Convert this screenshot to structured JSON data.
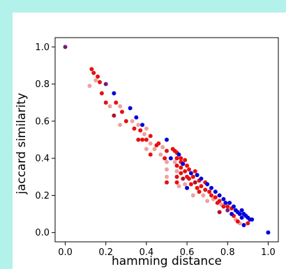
{
  "chart_data": {
    "type": "scatter",
    "title": "",
    "xlabel": "hamming distance",
    "ylabel": "jaccard similarity",
    "xlim": [
      -0.05,
      1.05
    ],
    "ylim": [
      -0.05,
      1.05
    ],
    "xticks": [
      "0.0",
      "0.2",
      "0.4",
      "0.6",
      "0.8",
      "1.0"
    ],
    "yticks": [
      "0.0",
      "0.2",
      "0.4",
      "0.6",
      "0.8",
      "1.0"
    ],
    "grid": false,
    "colors": {
      "blue": "#0000dd",
      "red": "#e81010",
      "pink": "#f0a0a0",
      "darkred": "#b01030",
      "purple": "#7a1a7a"
    },
    "points": [
      {
        "x": 0.0,
        "y": 1.0,
        "c": "purple"
      },
      {
        "x": 1.0,
        "y": 0.0,
        "c": "blue"
      },
      {
        "x": 0.13,
        "y": 0.88,
        "c": "red"
      },
      {
        "x": 0.14,
        "y": 0.86,
        "c": "red"
      },
      {
        "x": 0.15,
        "y": 0.82,
        "c": "pink"
      },
      {
        "x": 0.16,
        "y": 0.84,
        "c": "red"
      },
      {
        "x": 0.17,
        "y": 0.81,
        "c": "red"
      },
      {
        "x": 0.12,
        "y": 0.79,
        "c": "pink"
      },
      {
        "x": 0.2,
        "y": 0.8,
        "c": "purple"
      },
      {
        "x": 0.18,
        "y": 0.75,
        "c": "red"
      },
      {
        "x": 0.2,
        "y": 0.7,
        "c": "red"
      },
      {
        "x": 0.22,
        "y": 0.68,
        "c": "pink"
      },
      {
        "x": 0.24,
        "y": 0.75,
        "c": "blue"
      },
      {
        "x": 0.25,
        "y": 0.7,
        "c": "red"
      },
      {
        "x": 0.27,
        "y": 0.68,
        "c": "pink"
      },
      {
        "x": 0.24,
        "y": 0.63,
        "c": "darkred"
      },
      {
        "x": 0.28,
        "y": 0.65,
        "c": "red"
      },
      {
        "x": 0.3,
        "y": 0.6,
        "c": "red"
      },
      {
        "x": 0.32,
        "y": 0.67,
        "c": "blue"
      },
      {
        "x": 0.27,
        "y": 0.58,
        "c": "pink"
      },
      {
        "x": 0.33,
        "y": 0.6,
        "c": "pink"
      },
      {
        "x": 0.35,
        "y": 0.62,
        "c": "blue"
      },
      {
        "x": 0.34,
        "y": 0.56,
        "c": "red"
      },
      {
        "x": 0.36,
        "y": 0.58,
        "c": "pink"
      },
      {
        "x": 0.37,
        "y": 0.55,
        "c": "red"
      },
      {
        "x": 0.38,
        "y": 0.58,
        "c": "blue"
      },
      {
        "x": 0.39,
        "y": 0.53,
        "c": "pink"
      },
      {
        "x": 0.4,
        "y": 0.56,
        "c": "pink"
      },
      {
        "x": 0.36,
        "y": 0.5,
        "c": "red"
      },
      {
        "x": 0.38,
        "y": 0.5,
        "c": "red"
      },
      {
        "x": 0.4,
        "y": 0.5,
        "c": "red"
      },
      {
        "x": 0.42,
        "y": 0.48,
        "c": "pink"
      },
      {
        "x": 0.42,
        "y": 0.52,
        "c": "red"
      },
      {
        "x": 0.4,
        "y": 0.45,
        "c": "pink"
      },
      {
        "x": 0.42,
        "y": 0.42,
        "c": "red"
      },
      {
        "x": 0.44,
        "y": 0.45,
        "c": "pink"
      },
      {
        "x": 0.45,
        "y": 0.47,
        "c": "red"
      },
      {
        "x": 0.46,
        "y": 0.48,
        "c": "red"
      },
      {
        "x": 0.47,
        "y": 0.42,
        "c": "pink"
      },
      {
        "x": 0.48,
        "y": 0.46,
        "c": "pink"
      },
      {
        "x": 0.5,
        "y": 0.5,
        "c": "blue"
      },
      {
        "x": 0.49,
        "y": 0.4,
        "c": "red"
      },
      {
        "x": 0.5,
        "y": 0.44,
        "c": "red"
      },
      {
        "x": 0.5,
        "y": 0.38,
        "c": "pink"
      },
      {
        "x": 0.5,
        "y": 0.34,
        "c": "pink"
      },
      {
        "x": 0.5,
        "y": 0.3,
        "c": "pink"
      },
      {
        "x": 0.5,
        "y": 0.27,
        "c": "red"
      },
      {
        "x": 0.52,
        "y": 0.4,
        "c": "blue"
      },
      {
        "x": 0.53,
        "y": 0.45,
        "c": "red"
      },
      {
        "x": 0.54,
        "y": 0.44,
        "c": "red"
      },
      {
        "x": 0.54,
        "y": 0.38,
        "c": "pink"
      },
      {
        "x": 0.55,
        "y": 0.43,
        "c": "red"
      },
      {
        "x": 0.55,
        "y": 0.4,
        "c": "red"
      },
      {
        "x": 0.55,
        "y": 0.36,
        "c": "red"
      },
      {
        "x": 0.55,
        "y": 0.33,
        "c": "pink"
      },
      {
        "x": 0.55,
        "y": 0.3,
        "c": "red"
      },
      {
        "x": 0.55,
        "y": 0.27,
        "c": "red"
      },
      {
        "x": 0.56,
        "y": 0.25,
        "c": "pink"
      },
      {
        "x": 0.56,
        "y": 0.42,
        "c": "blue"
      },
      {
        "x": 0.57,
        "y": 0.4,
        "c": "red"
      },
      {
        "x": 0.57,
        "y": 0.38,
        "c": "red"
      },
      {
        "x": 0.57,
        "y": 0.35,
        "c": "red"
      },
      {
        "x": 0.57,
        "y": 0.32,
        "c": "red"
      },
      {
        "x": 0.58,
        "y": 0.29,
        "c": "darkred"
      },
      {
        "x": 0.58,
        "y": 0.37,
        "c": "blue"
      },
      {
        "x": 0.59,
        "y": 0.39,
        "c": "red"
      },
      {
        "x": 0.59,
        "y": 0.33,
        "c": "red"
      },
      {
        "x": 0.59,
        "y": 0.26,
        "c": "pink"
      },
      {
        "x": 0.6,
        "y": 0.36,
        "c": "red"
      },
      {
        "x": 0.6,
        "y": 0.3,
        "c": "red"
      },
      {
        "x": 0.6,
        "y": 0.24,
        "c": "blue"
      },
      {
        "x": 0.61,
        "y": 0.34,
        "c": "red"
      },
      {
        "x": 0.61,
        "y": 0.29,
        "c": "red"
      },
      {
        "x": 0.62,
        "y": 0.32,
        "c": "blue"
      },
      {
        "x": 0.62,
        "y": 0.26,
        "c": "red"
      },
      {
        "x": 0.63,
        "y": 0.3,
        "c": "red"
      },
      {
        "x": 0.63,
        "y": 0.2,
        "c": "pink"
      },
      {
        "x": 0.64,
        "y": 0.33,
        "c": "red"
      },
      {
        "x": 0.64,
        "y": 0.27,
        "c": "darkred"
      },
      {
        "x": 0.65,
        "y": 0.31,
        "c": "blue"
      },
      {
        "x": 0.65,
        "y": 0.24,
        "c": "red"
      },
      {
        "x": 0.66,
        "y": 0.22,
        "c": "red"
      },
      {
        "x": 0.66,
        "y": 0.28,
        "c": "red"
      },
      {
        "x": 0.67,
        "y": 0.29,
        "c": "blue"
      },
      {
        "x": 0.67,
        "y": 0.25,
        "c": "red"
      },
      {
        "x": 0.68,
        "y": 0.2,
        "c": "pink"
      },
      {
        "x": 0.69,
        "y": 0.27,
        "c": "red"
      },
      {
        "x": 0.69,
        "y": 0.23,
        "c": "red"
      },
      {
        "x": 0.7,
        "y": 0.26,
        "c": "blue"
      },
      {
        "x": 0.7,
        "y": 0.17,
        "c": "pink"
      },
      {
        "x": 0.71,
        "y": 0.22,
        "c": "red"
      },
      {
        "x": 0.72,
        "y": 0.24,
        "c": "blue"
      },
      {
        "x": 0.72,
        "y": 0.2,
        "c": "red"
      },
      {
        "x": 0.73,
        "y": 0.18,
        "c": "pink"
      },
      {
        "x": 0.74,
        "y": 0.22,
        "c": "blue"
      },
      {
        "x": 0.74,
        "y": 0.19,
        "c": "red"
      },
      {
        "x": 0.75,
        "y": 0.16,
        "c": "red"
      },
      {
        "x": 0.76,
        "y": 0.2,
        "c": "blue"
      },
      {
        "x": 0.76,
        "y": 0.17,
        "c": "red"
      },
      {
        "x": 0.76,
        "y": 0.11,
        "c": "darkred"
      },
      {
        "x": 0.77,
        "y": 0.15,
        "c": "pink"
      },
      {
        "x": 0.78,
        "y": 0.18,
        "c": "blue"
      },
      {
        "x": 0.78,
        "y": 0.14,
        "c": "red"
      },
      {
        "x": 0.79,
        "y": 0.16,
        "c": "blue"
      },
      {
        "x": 0.8,
        "y": 0.14,
        "c": "red"
      },
      {
        "x": 0.8,
        "y": 0.12,
        "c": "purple"
      },
      {
        "x": 0.81,
        "y": 0.16,
        "c": "blue"
      },
      {
        "x": 0.82,
        "y": 0.13,
        "c": "red"
      },
      {
        "x": 0.82,
        "y": 0.1,
        "c": "blue"
      },
      {
        "x": 0.83,
        "y": 0.14,
        "c": "blue"
      },
      {
        "x": 0.83,
        "y": 0.09,
        "c": "red"
      },
      {
        "x": 0.84,
        "y": 0.12,
        "c": "blue"
      },
      {
        "x": 0.84,
        "y": 0.07,
        "c": "pink"
      },
      {
        "x": 0.85,
        "y": 0.11,
        "c": "blue"
      },
      {
        "x": 0.85,
        "y": 0.06,
        "c": "red"
      },
      {
        "x": 0.86,
        "y": 0.1,
        "c": "blue"
      },
      {
        "x": 0.86,
        "y": 0.05,
        "c": "pink"
      },
      {
        "x": 0.87,
        "y": 0.12,
        "c": "blue"
      },
      {
        "x": 0.87,
        "y": 0.08,
        "c": "blue"
      },
      {
        "x": 0.88,
        "y": 0.1,
        "c": "blue"
      },
      {
        "x": 0.88,
        "y": 0.04,
        "c": "blue"
      },
      {
        "x": 0.89,
        "y": 0.09,
        "c": "blue"
      },
      {
        "x": 0.9,
        "y": 0.08,
        "c": "blue"
      },
      {
        "x": 0.9,
        "y": 0.05,
        "c": "red"
      },
      {
        "x": 0.91,
        "y": 0.07,
        "c": "blue"
      },
      {
        "x": 0.92,
        "y": 0.07,
        "c": "blue"
      }
    ]
  }
}
